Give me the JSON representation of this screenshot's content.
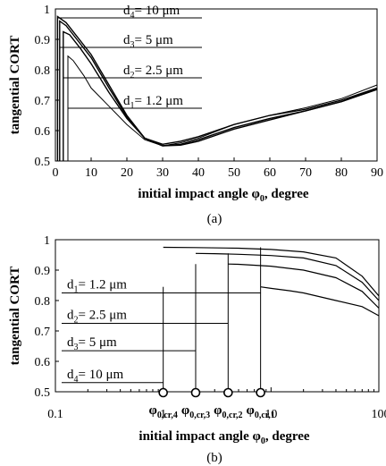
{
  "chart_data": [
    {
      "type": "line",
      "caption": "(a)",
      "xlabel": "initial impact angle φ₀, degree",
      "ylabel": "tangential CORT",
      "xlim": [
        0,
        90
      ],
      "ylim": [
        0.5,
        1.0
      ],
      "xticks": [
        "0",
        "10",
        "20",
        "30",
        "40",
        "50",
        "60",
        "70",
        "80",
        "90"
      ],
      "yticks": [
        "0.5",
        "0.6",
        "0.7",
        "0.8",
        "0.9",
        "1"
      ],
      "series": [
        {
          "name": "d4= 10 μm",
          "x": [
            0.6,
            3,
            6,
            10,
            15,
            20,
            25,
            30,
            35,
            40,
            50,
            60,
            70,
            80,
            90
          ],
          "y": [
            0.975,
            0.955,
            0.91,
            0.85,
            0.75,
            0.65,
            0.575,
            0.555,
            0.565,
            0.58,
            0.62,
            0.65,
            0.67,
            0.7,
            0.74
          ]
        },
        {
          "name": "d3= 5 μm",
          "x": [
            1.2,
            3,
            6,
            10,
            15,
            20,
            25,
            30,
            35,
            40,
            50,
            60,
            70,
            80,
            90
          ],
          "y": [
            0.96,
            0.945,
            0.9,
            0.84,
            0.74,
            0.645,
            0.575,
            0.55,
            0.555,
            0.57,
            0.61,
            0.64,
            0.665,
            0.695,
            0.735
          ]
        },
        {
          "name": "d2= 2.5 μm",
          "x": [
            2.2,
            4,
            7,
            10,
            15,
            20,
            25,
            30,
            35,
            40,
            50,
            60,
            70,
            80,
            90
          ],
          "y": [
            0.925,
            0.915,
            0.87,
            0.82,
            0.725,
            0.64,
            0.575,
            0.55,
            0.552,
            0.565,
            0.605,
            0.635,
            0.665,
            0.695,
            0.737
          ]
        },
        {
          "name": "d1= 1.2 μm",
          "x": [
            3.5,
            5,
            8,
            10,
            15,
            20,
            25,
            30,
            35,
            40,
            50,
            60,
            70,
            80,
            90
          ],
          "y": [
            0.845,
            0.83,
            0.78,
            0.74,
            0.68,
            0.62,
            0.57,
            0.55,
            0.56,
            0.575,
            0.62,
            0.65,
            0.675,
            0.705,
            0.75
          ]
        }
      ],
      "annotations": [
        "d4= 10 μm",
        "d3= 5 μm",
        "d2= 2.5 μm",
        "d1= 1.2 μm"
      ]
    },
    {
      "type": "line",
      "caption": "(b)",
      "xlabel": "initial impact angle φ₀, degree",
      "ylabel": "tangential CORT",
      "xscale": "log",
      "xlim": [
        0.1,
        100
      ],
      "ylim": [
        0.5,
        1.0
      ],
      "xticks": [
        "0.1",
        "1",
        "10"
      ],
      "yticks": [
        "0.5",
        "0.6",
        "0.7",
        "0.8",
        "0.9",
        "1"
      ],
      "series": [
        {
          "name": "d4= 10 μm",
          "x": [
            1,
            2,
            5,
            10,
            20,
            40,
            70,
            100
          ],
          "y": [
            0.975,
            0.974,
            0.972,
            0.968,
            0.96,
            0.94,
            0.88,
            0.815
          ]
        },
        {
          "name": "d3= 5 μm",
          "x": [
            2,
            3,
            5,
            10,
            20,
            40,
            70,
            100
          ],
          "y": [
            0.955,
            0.954,
            0.952,
            0.948,
            0.94,
            0.915,
            0.86,
            0.8
          ]
        },
        {
          "name": "d2= 2.5 μm",
          "x": [
            4,
            5,
            10,
            20,
            40,
            70,
            100
          ],
          "y": [
            0.92,
            0.919,
            0.913,
            0.9,
            0.875,
            0.83,
            0.775
          ]
        },
        {
          "name": "d1= 1.2 μm",
          "x": [
            8,
            10,
            15,
            20,
            40,
            70,
            100
          ],
          "y": [
            0.845,
            0.84,
            0.832,
            0.825,
            0.8,
            0.78,
            0.75
          ]
        }
      ],
      "critical_angles": [
        {
          "label": "φ0,cr,4",
          "x": 1.0,
          "d_label": "d4= 10 μm",
          "y_level": 0.53
        },
        {
          "label": "φ0,cr,3",
          "x": 2.0,
          "d_label": "d3= 5 μm",
          "y_level": 0.635
        },
        {
          "label": "φ0,cr,2",
          "x": 4.0,
          "d_label": "d2= 2.5 μm",
          "y_level": 0.725
        },
        {
          "label": "φ0,cr,1",
          "x": 8.0,
          "d_label": "d1= 1.2 μm",
          "y_level": 0.825
        }
      ]
    }
  ]
}
